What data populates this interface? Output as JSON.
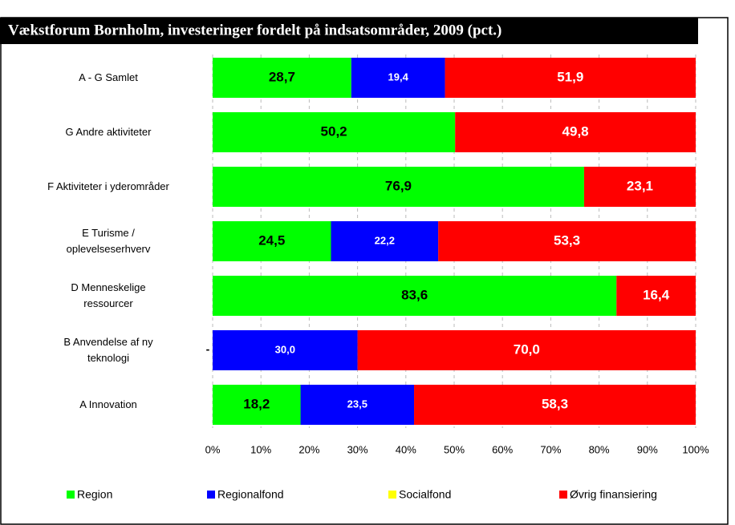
{
  "chart_data": {
    "type": "stacked-bar-horizontal",
    "title": "Vækstforum Bornholm, investeringer fordelt på indsatsområder, 2009 (pct.)",
    "categories": [
      "A - G Samlet",
      "G  Andre aktiviteter",
      "F Aktiviteter i yderområder",
      "E Turisme /\noplevelseserhverv",
      "D Menneskelige\nressourcer",
      "B Anvendelse af ny\nteknologi",
      "A Innovation"
    ],
    "series": [
      {
        "name": "Region",
        "color": "#00ff00",
        "values": [
          28.7,
          50.2,
          76.9,
          24.5,
          83.6,
          0,
          18.2
        ],
        "value_labels": [
          "28,7",
          "50,2",
          "76,9",
          "24,5",
          "83,6",
          "-",
          "18,2"
        ]
      },
      {
        "name": "Regionalfond",
        "color": "#0000ff",
        "values": [
          19.4,
          0,
          0,
          22.2,
          0,
          30.0,
          23.5
        ],
        "value_labels": [
          "19,4",
          "-",
          "-",
          "22,2",
          "-",
          "30,0",
          "23,5"
        ]
      },
      {
        "name": "Socialfond",
        "color": "#ffff00",
        "values": [
          0,
          0,
          0,
          0,
          0,
          0,
          0
        ]
      },
      {
        "name": "Øvrig finansiering",
        "color": "#ff0000",
        "values": [
          51.9,
          49.8,
          23.1,
          53.3,
          16.4,
          70.0,
          58.3
        ],
        "value_labels": [
          "51,9",
          "49,8",
          "23,1",
          "53,3",
          "16,4",
          "70,0",
          "58,3"
        ]
      }
    ],
    "xlim": [
      0,
      100
    ],
    "xticks": [
      {
        "value": 0,
        "label": "0%"
      },
      {
        "value": 10,
        "label": "10%"
      },
      {
        "value": 20,
        "label": "20%"
      },
      {
        "value": 30,
        "label": "30%"
      },
      {
        "value": 40,
        "label": "40%"
      },
      {
        "value": 50,
        "label": "50%"
      },
      {
        "value": 60,
        "label": "60%"
      },
      {
        "value": 70,
        "label": "70%"
      },
      {
        "value": 80,
        "label": "80%"
      },
      {
        "value": 90,
        "label": "90%"
      },
      {
        "value": 100,
        "label": "100%"
      }
    ],
    "grid": true,
    "legend": "bottom"
  }
}
